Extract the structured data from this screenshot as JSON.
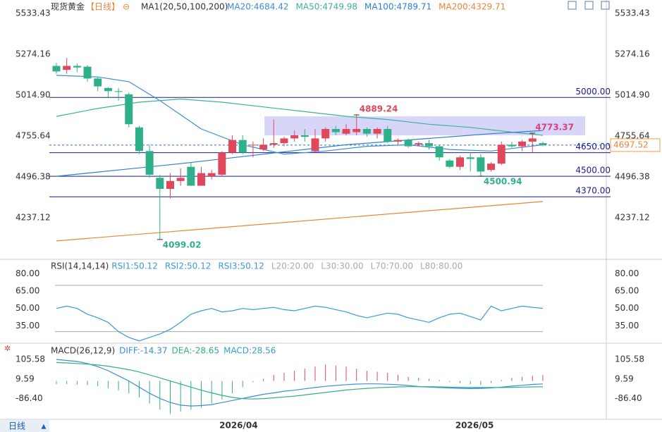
{
  "header": {
    "symbol": "现货黄金",
    "period": "【日线】",
    "ma_params": "MA1(20,50,100,200)",
    "period_button": "日线"
  },
  "chart_data": [
    {
      "type": "candlestick",
      "ylim": [
        4000,
        5600
      ],
      "yticks": [
        4237.12,
        4496.38,
        4755.64,
        5014.9,
        5274.16,
        5533.43
      ],
      "ytick_labels": [
        "4237.12",
        "4496.38",
        "4755.64",
        "5014.90",
        "5274.16",
        "5533.43"
      ],
      "xlabels": [
        {
          "index": 17.6,
          "label": "2026/04"
        },
        {
          "index": 40.4,
          "label": "2026/05"
        }
      ],
      "open": [
        5200,
        5175,
        5200,
        5195,
        5120,
        5060,
        5040,
        5020,
        4810,
        4660,
        4490,
        4420,
        4470,
        4560,
        4440,
        4500,
        4510,
        4650,
        4730,
        4700,
        4670,
        4700,
        4710,
        4740,
        4760,
        4660,
        4740,
        4800,
        4770,
        4780,
        4800,
        4770,
        4800,
        4720,
        4730,
        4700,
        4710,
        4690,
        4600,
        4560,
        4620,
        4620,
        4540,
        4580,
        4700,
        4690,
        4720,
        4710
      ],
      "high": [
        5220,
        5250,
        5215,
        5205,
        5130,
        5065,
        5060,
        5030,
        4820,
        4700,
        4510,
        4520,
        4550,
        4590,
        4560,
        4540,
        4660,
        4760,
        4760,
        4720,
        4740,
        4860,
        4750,
        4790,
        4800,
        4800,
        4810,
        4820,
        4830,
        4889.24,
        4810,
        4810,
        4820,
        4740,
        4740,
        4720,
        4730,
        4700,
        4610,
        4630,
        4650,
        4640,
        4590,
        4720,
        4720,
        4730,
        4773.37,
        4720
      ],
      "low": [
        5150,
        5150,
        5160,
        5100,
        5040,
        5000,
        4980,
        4810,
        4640,
        4490,
        4099.02,
        4360,
        4440,
        4440,
        4440,
        4480,
        4500,
        4640,
        4640,
        4620,
        4660,
        4680,
        4690,
        4720,
        4720,
        4650,
        4720,
        4760,
        4760,
        4760,
        4750,
        4740,
        4710,
        4700,
        4680,
        4690,
        4670,
        4600,
        4550,
        4540,
        4530,
        4500.94,
        4530,
        4570,
        4680,
        4660,
        4650,
        4690
      ],
      "close": [
        5165,
        5200,
        5190,
        5120,
        5070,
        5040,
        5035,
        4830,
        4660,
        4510,
        4420,
        4470,
        4490,
        4440,
        4520,
        4520,
        4650,
        4730,
        4650,
        4700,
        4700,
        4710,
        4740,
        4760,
        4750,
        4740,
        4800,
        4780,
        4800,
        4800,
        4770,
        4800,
        4720,
        4730,
        4690,
        4710,
        4690,
        4620,
        4560,
        4620,
        4610,
        4530,
        4580,
        4700,
        4690,
        4720,
        4740,
        4697.52
      ],
      "up_color": "#e0475b",
      "down_color": "#2fb08a",
      "series": [
        {
          "name": "MA20",
          "legend": "MA20:4684.42",
          "color": "#3a8ed8",
          "x": [
            0,
            4,
            7,
            10,
            14,
            18,
            22,
            26,
            30,
            34,
            38,
            42,
            47
          ],
          "values": [
            5140,
            5130,
            5100,
            4980,
            4800,
            4700,
            4640,
            4660,
            4690,
            4700,
            4670,
            4660,
            4700
          ]
        },
        {
          "name": "MA50",
          "legend": "MA50:4749.98",
          "color": "#3db29a",
          "x": [
            0,
            4,
            8,
            12,
            16,
            20,
            24,
            28,
            32,
            36,
            40,
            44,
            47
          ],
          "values": [
            4880,
            4930,
            4970,
            4990,
            4970,
            4940,
            4910,
            4880,
            4860,
            4830,
            4810,
            4780,
            4760
          ]
        },
        {
          "name": "MA100",
          "legend": "MA100:4789.71",
          "color": "#2e7fcf",
          "x": [
            0,
            6,
            12,
            20,
            28,
            36,
            42,
            47
          ],
          "values": [
            4500,
            4540,
            4580,
            4640,
            4700,
            4740,
            4770,
            4790
          ]
        },
        {
          "name": "MA200",
          "legend": "MA200:4329.71",
          "color": "#e8863a",
          "x": [
            0,
            47
          ],
          "values": [
            4090,
            4340
          ]
        }
      ],
      "levels": [
        {
          "value": 5000,
          "label": "5000.00"
        },
        {
          "value": 4650,
          "label": "4650.00"
        },
        {
          "value": 4500,
          "label": "4500.00"
        },
        {
          "value": 4370,
          "label": "4370.00"
        }
      ],
      "last_price": 4697.52,
      "zone": {
        "top": 4880,
        "bottom": 4760,
        "x_start": 20.1
      },
      "annotations": [
        {
          "index": 29,
          "value": 4889.24,
          "label": "4889.24",
          "color": "#e0475b"
        },
        {
          "index": 46,
          "value": 4773.37,
          "label": "4773.37",
          "color": "#d8407a"
        },
        {
          "index": 41,
          "value": 4500.94,
          "label": "4500.94",
          "color": "#2fb08a"
        },
        {
          "index": 10,
          "value": 4099.02,
          "label": "4099.02",
          "color": "#2fb08a"
        }
      ]
    },
    {
      "type": "line",
      "title": "RSI(14,14,14)",
      "ylim": [
        20,
        90
      ],
      "yticks": [
        {
          "value": 35,
          "label": "35.00"
        },
        {
          "value": 50,
          "label": "50.00"
        },
        {
          "value": 65,
          "label": "65.00"
        },
        {
          "value": 80,
          "label": "80.00"
        }
      ],
      "guide_lines": [
        70,
        30
      ],
      "legend_extra": [
        "L20:20.00",
        "L30:30.00",
        "L70:70.00",
        "L80:80.00"
      ],
      "series": [
        {
          "name": "RSI1",
          "legend": "RSI1:50.12",
          "color": "#3a9ad8",
          "values": [
            50,
            52,
            50,
            45,
            42,
            38,
            30,
            25,
            22,
            25,
            28,
            32,
            38,
            45,
            48,
            50,
            47,
            48,
            50,
            49,
            50,
            51,
            49,
            48,
            50,
            52,
            51,
            49,
            47,
            44,
            42,
            44,
            46,
            45,
            42,
            40,
            38,
            42,
            45,
            46,
            43,
            40,
            52,
            48,
            50,
            52,
            51,
            50.12
          ]
        }
      ],
      "legend_more": [
        "RSI2:50.12",
        "RSI3:50.12"
      ]
    },
    {
      "type": "macd",
      "title": "MACD(26,12,9)",
      "ylim": [
        -180,
        160
      ],
      "yticks": [
        {
          "value": -86.4,
          "label": "-86.40"
        },
        9.59,
        105.58
      ],
      "histogram": [
        -15,
        -15,
        -18,
        -20,
        -25,
        -35,
        -45,
        -60,
        -80,
        -110,
        -140,
        -160,
        -150,
        -140,
        -130,
        -110,
        -90,
        -60,
        -30,
        -5,
        10,
        30,
        40,
        50,
        60,
        70,
        80,
        75,
        70,
        60,
        50,
        45,
        40,
        30,
        20,
        15,
        10,
        5,
        -5,
        -10,
        -15,
        -20,
        -10,
        5,
        15,
        20,
        25,
        28.56
      ],
      "series": [
        {
          "name": "DIFF",
          "legend": "DIFF:-14.37",
          "color": "#3a8ed8",
          "values": [
            105,
            100,
            95,
            85,
            70,
            50,
            25,
            0,
            -30,
            -60,
            -85,
            -105,
            -118,
            -122,
            -120,
            -115,
            -105,
            -95,
            -85,
            -75,
            -65,
            -58,
            -50,
            -45,
            -38,
            -32,
            -26,
            -22,
            -18,
            -15,
            -14,
            -14,
            -16,
            -18,
            -22,
            -27,
            -30,
            -32,
            -34,
            -36,
            -37,
            -36,
            -34,
            -30,
            -25,
            -21,
            -17,
            -14.37
          ]
        },
        {
          "name": "DEA",
          "legend": "DEA:-28.65",
          "color": "#2fb08a",
          "values": [
            90,
            88,
            85,
            82,
            78,
            72,
            64,
            55,
            44,
            30,
            15,
            0,
            -15,
            -30,
            -45,
            -58,
            -70,
            -80,
            -86,
            -88,
            -86,
            -82,
            -78,
            -74,
            -68,
            -62,
            -56,
            -50,
            -44,
            -40,
            -36,
            -33,
            -31,
            -29,
            -28,
            -28,
            -28,
            -29,
            -30,
            -31,
            -32,
            -32,
            -32,
            -32,
            -31,
            -30,
            -29,
            -28.65
          ]
        }
      ],
      "legend_macd": "MACD:28.56",
      "up_color": "#e0475b",
      "down_color": "#2fb08a"
    }
  ]
}
